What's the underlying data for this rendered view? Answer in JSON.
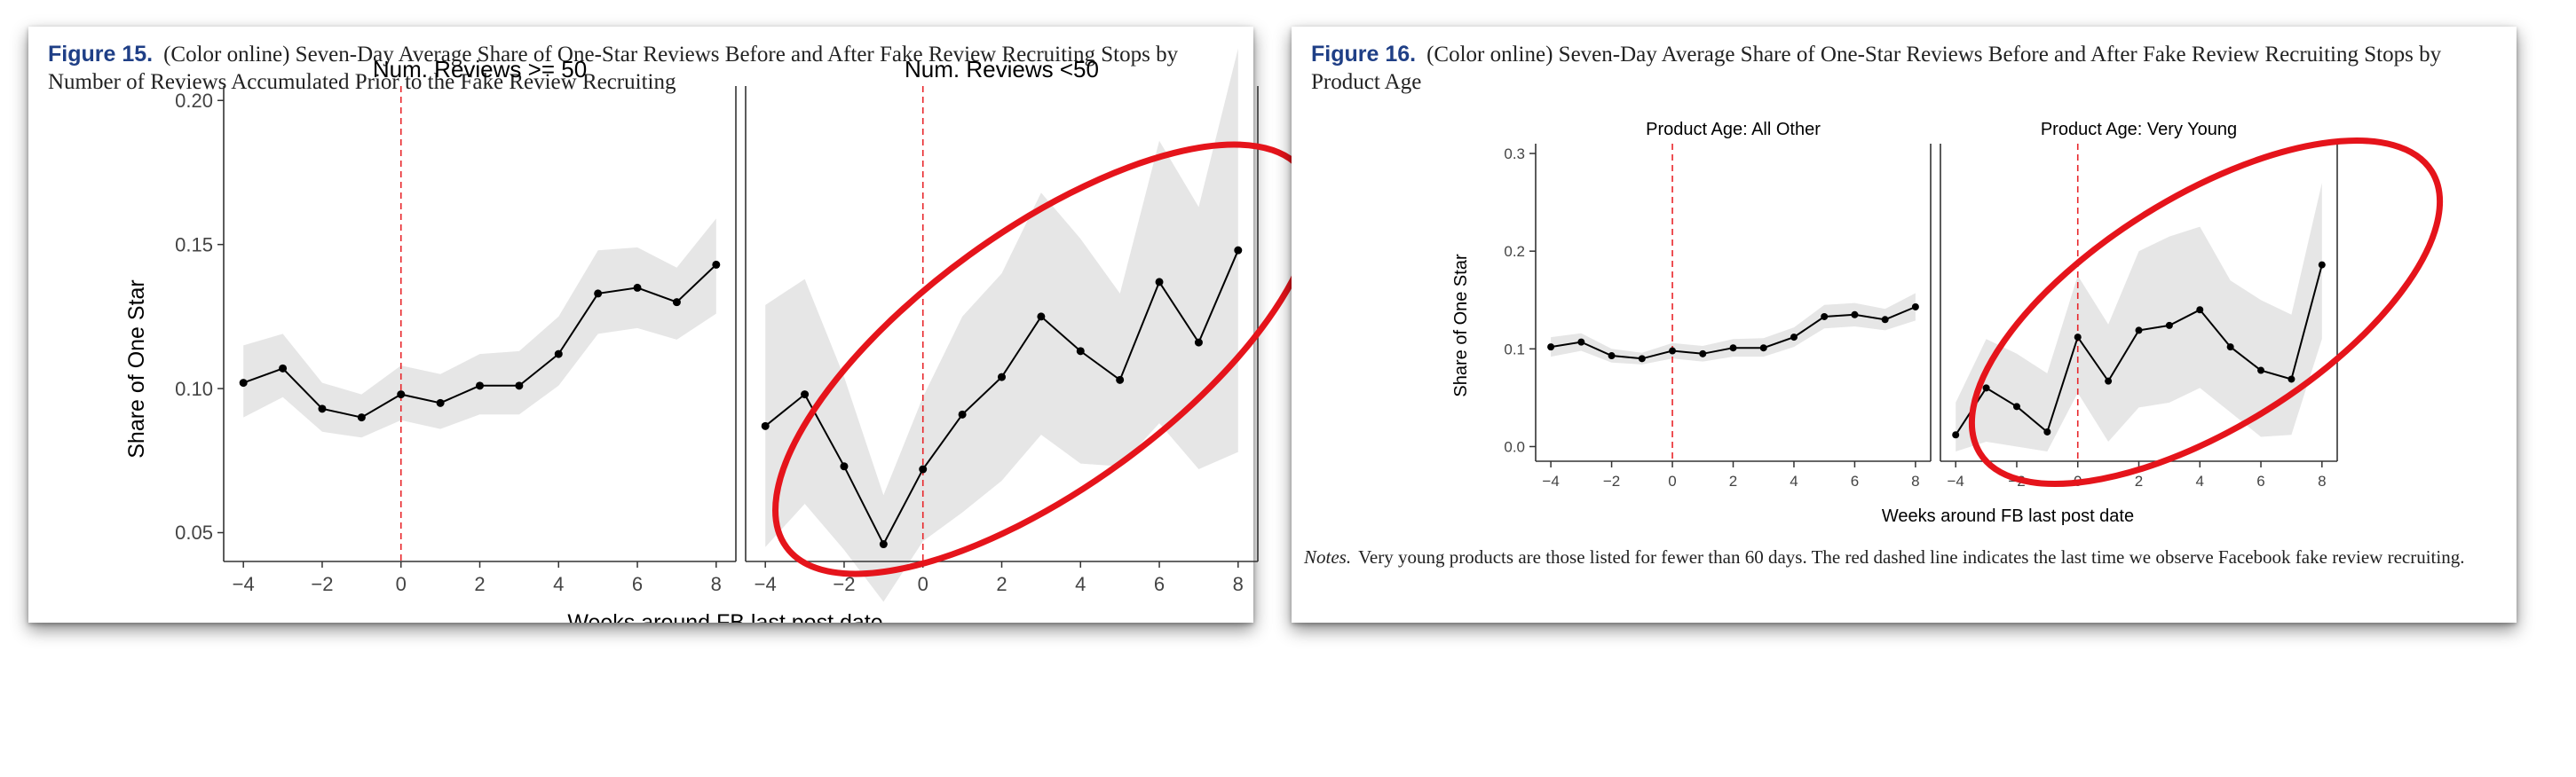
{
  "figure15": {
    "label": "Figure 15.",
    "caption": "(Color online) Seven-Day Average Share of One-Star Reviews Before and After Fake Review Recruiting Stops by Number of Reviews Accumulated Prior to the Fake Review Recruiting"
  },
  "figure16": {
    "label": "Figure 16.",
    "caption": "(Color online) Seven-Day Average Share of One-Star Reviews Before and After Fake Review Recruiting Stops by Product Age",
    "notes_label": "Notes.",
    "notes": "Very young products are those listed for fewer than 60 days. The red dashed line indicates the last time we observe Facebook fake review recruiting."
  },
  "colors": {
    "figure_label": "#1f3f86",
    "line": "#000000",
    "ribbon": "#e6e6e6",
    "dashed": "#e8262b",
    "highlight_ellipse": "#e5141b"
  },
  "chart_data": [
    {
      "type": "line",
      "title": "Num. Reviews >= 50",
      "xlabel": "Weeks around FB last post date",
      "ylabel": "Share of One Star",
      "x": [
        -4,
        -3,
        -2,
        -1,
        0,
        1,
        2,
        3,
        4,
        5,
        6,
        7,
        8
      ],
      "series": [
        {
          "values": [
            0.102,
            0.107,
            0.093,
            0.09,
            0.098,
            0.095,
            0.101,
            0.101,
            0.112,
            0.133,
            0.135,
            0.13,
            0.143
          ],
          "lower": [
            0.09,
            0.097,
            0.085,
            0.083,
            0.089,
            0.086,
            0.091,
            0.091,
            0.101,
            0.119,
            0.121,
            0.117,
            0.126
          ],
          "upper": [
            0.115,
            0.119,
            0.102,
            0.098,
            0.108,
            0.105,
            0.112,
            0.113,
            0.125,
            0.148,
            0.149,
            0.142,
            0.159
          ]
        }
      ],
      "xlim": [
        -4.5,
        8.5
      ],
      "ylim": [
        0.04,
        0.205
      ],
      "xticks": [
        -4,
        -2,
        0,
        2,
        4,
        6,
        8
      ],
      "yticks": [
        0.05,
        0.1,
        0.15,
        0.2
      ],
      "ytick_labels": [
        "0.05",
        "0.10",
        "0.15",
        "0.20"
      ],
      "reference_line_x": 0,
      "grid": false
    },
    {
      "type": "line",
      "title": "Num. Reviews <50",
      "xlabel": "Weeks around FB last post date",
      "ylabel": "Share of One Star",
      "x": [
        -4,
        -3,
        -2,
        -1,
        0,
        1,
        2,
        3,
        4,
        5,
        6,
        7,
        8
      ],
      "series": [
        {
          "values": [
            0.087,
            0.098,
            0.073,
            0.046,
            0.072,
            0.091,
            0.104,
            0.125,
            0.113,
            0.103,
            0.137,
            0.116,
            0.148
          ],
          "lower": [
            0.045,
            0.06,
            0.044,
            0.026,
            0.047,
            0.057,
            0.068,
            0.084,
            0.074,
            0.073,
            0.088,
            0.072,
            0.078
          ],
          "upper": [
            0.129,
            0.138,
            0.104,
            0.063,
            0.097,
            0.125,
            0.14,
            0.168,
            0.152,
            0.133,
            0.186,
            0.163,
            0.218
          ]
        }
      ],
      "xlim": [
        -4.5,
        8.5
      ],
      "ylim": [
        0.04,
        0.205
      ],
      "xticks": [
        -4,
        -2,
        0,
        2,
        4,
        6,
        8
      ],
      "reference_line_x": 0,
      "highlighted": true,
      "grid": false
    },
    {
      "type": "line",
      "title": "Product Age: All Other",
      "xlabel": "Weeks around FB last post date",
      "ylabel": "Share of One Star",
      "x": [
        -4,
        -3,
        -2,
        -1,
        0,
        1,
        2,
        3,
        4,
        5,
        6,
        7,
        8
      ],
      "series": [
        {
          "values": [
            0.102,
            0.107,
            0.093,
            0.09,
            0.098,
            0.095,
            0.101,
            0.101,
            0.112,
            0.133,
            0.135,
            0.13,
            0.143
          ],
          "lower": [
            0.092,
            0.098,
            0.086,
            0.084,
            0.09,
            0.087,
            0.092,
            0.092,
            0.102,
            0.121,
            0.123,
            0.119,
            0.129
          ],
          "upper": [
            0.112,
            0.116,
            0.1,
            0.096,
            0.106,
            0.103,
            0.11,
            0.111,
            0.122,
            0.145,
            0.147,
            0.141,
            0.157
          ]
        }
      ],
      "xlim": [
        -4.5,
        8.5
      ],
      "ylim": [
        -0.015,
        0.31
      ],
      "xticks": [
        -4,
        -2,
        0,
        2,
        4,
        6,
        8
      ],
      "yticks": [
        0.0,
        0.1,
        0.2,
        0.3
      ],
      "ytick_labels": [
        "0.0",
        "0.1",
        "0.2",
        "0.3"
      ],
      "reference_line_x": 0,
      "grid": false
    },
    {
      "type": "line",
      "title": "Product Age: Very Young",
      "xlabel": "Weeks around FB last post date",
      "ylabel": "Share of One Star",
      "x": [
        -4,
        -3,
        -2,
        -1,
        0,
        1,
        2,
        3,
        4,
        5,
        6,
        7,
        8
      ],
      "series": [
        {
          "values": [
            0.012,
            0.06,
            0.041,
            0.015,
            0.112,
            0.067,
            0.119,
            0.124,
            0.14,
            0.102,
            0.078,
            0.069,
            0.186
          ],
          "lower": [
            -0.005,
            0.005,
            0.0,
            -0.005,
            0.055,
            0.005,
            0.04,
            0.045,
            0.06,
            0.035,
            0.01,
            0.012,
            0.11
          ],
          "upper": [
            0.045,
            0.11,
            0.095,
            0.075,
            0.175,
            0.125,
            0.2,
            0.215,
            0.225,
            0.17,
            0.15,
            0.135,
            0.27
          ]
        }
      ],
      "xlim": [
        -4.5,
        8.5
      ],
      "ylim": [
        -0.015,
        0.31
      ],
      "xticks": [
        -4,
        -2,
        0,
        2,
        4,
        6,
        8
      ],
      "reference_line_x": 0,
      "highlighted": true,
      "grid": false
    }
  ],
  "axes_text": {
    "left_ylabel": "Share of One Star",
    "left_xlabel": "Weeks around FB last post date",
    "right_ylabel": "Share of One Star",
    "right_xlabel": "Weeks around FB last post date"
  }
}
